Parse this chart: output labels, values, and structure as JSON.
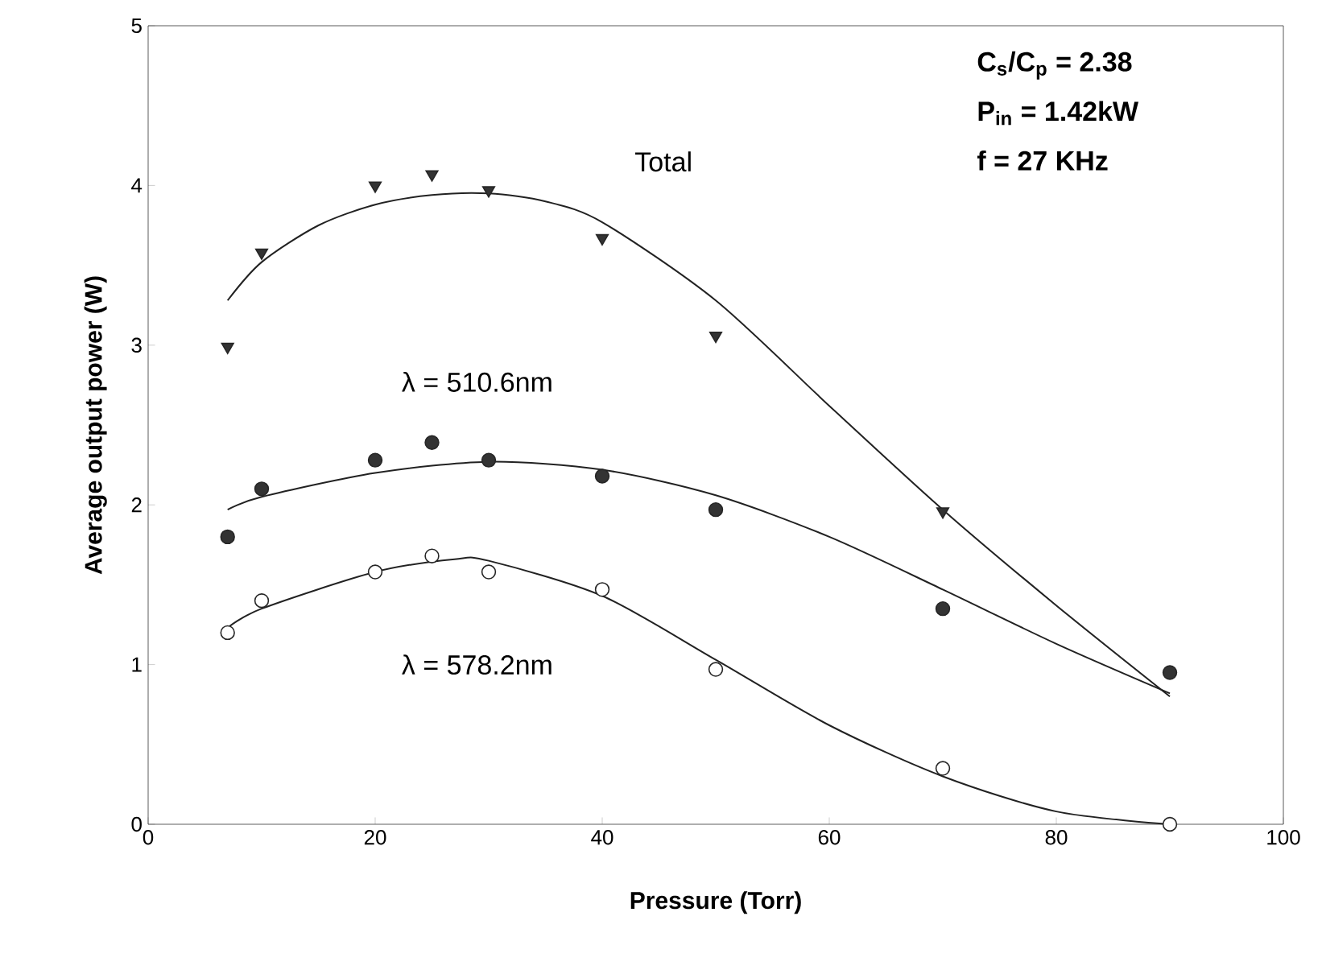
{
  "chart_data": {
    "type": "scatter",
    "xlabel": "Pressure (Torr)",
    "ylabel": "Average output power (W)",
    "xlim": [
      0,
      100
    ],
    "ylim": [
      0,
      5
    ],
    "xticks": [
      0,
      20,
      40,
      60,
      80,
      100
    ],
    "yticks": [
      0,
      1,
      2,
      3,
      4,
      5
    ],
    "series": [
      {
        "marker": "triangle",
        "color": "#333333",
        "x": [
          7,
          10,
          20,
          25,
          30,
          40,
          50,
          70
        ],
        "values": [
          2.99,
          3.58,
          4.0,
          4.07,
          3.97,
          3.67,
          3.06,
          1.96
        ]
      },
      {
        "marker": "circle",
        "color": "#333333",
        "x": [
          7,
          10,
          20,
          25,
          30,
          40,
          50,
          70,
          90
        ],
        "values": [
          1.8,
          2.1,
          2.28,
          2.39,
          2.28,
          2.18,
          1.97,
          1.35,
          0.95
        ]
      },
      {
        "marker": "circle",
        "color": "#ffffff",
        "x": [
          7,
          10,
          20,
          25,
          30,
          40,
          50,
          70,
          90
        ],
        "values": [
          1.2,
          1.4,
          1.58,
          1.68,
          1.58,
          1.47,
          0.97,
          0.35,
          0.0
        ]
      },
      {
        "type": "line",
        "color": "#222222",
        "x": [
          7,
          10,
          15,
          20,
          25,
          30,
          35,
          40,
          50,
          60,
          70,
          80,
          90
        ],
        "values": [
          3.28,
          3.52,
          3.75,
          3.88,
          3.94,
          3.95,
          3.9,
          3.77,
          3.28,
          2.62,
          1.97,
          1.37,
          0.8
        ]
      },
      {
        "type": "line",
        "color": "#222222",
        "x": [
          7,
          10,
          20,
          30,
          40,
          50,
          60,
          70,
          80,
          90
        ],
        "values": [
          1.97,
          2.05,
          2.2,
          2.27,
          2.22,
          2.06,
          1.8,
          1.47,
          1.13,
          0.82
        ]
      },
      {
        "type": "line",
        "color": "#222222",
        "x": [
          7,
          10,
          20,
          27,
          30,
          40,
          50,
          60,
          70,
          80,
          90
        ],
        "values": [
          1.23,
          1.35,
          1.58,
          1.66,
          1.65,
          1.43,
          1.03,
          0.62,
          0.3,
          0.08,
          0.0
        ]
      }
    ],
    "annotations": [
      "Total",
      "λ = 510.6nm",
      "λ = 578.2nm",
      "C$_{s}$/C$_{p}$ = 2.38",
      "P$_{in}$ = 1.42kW",
      "f = 27 KHz"
    ]
  }
}
